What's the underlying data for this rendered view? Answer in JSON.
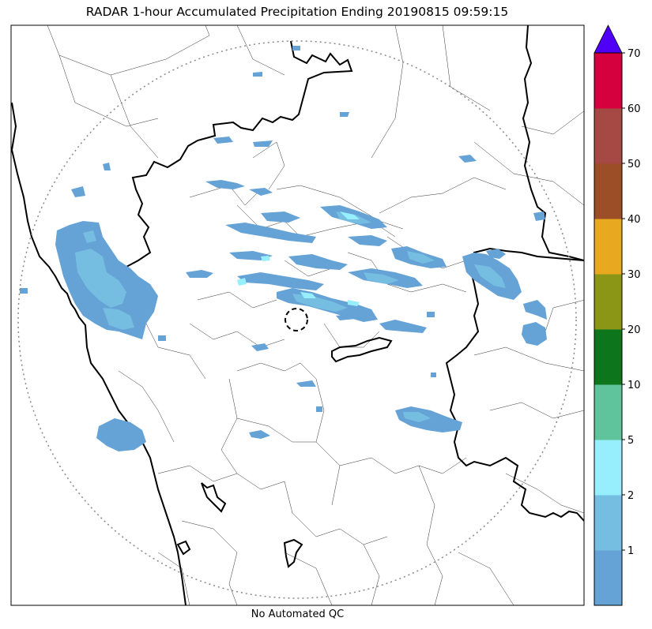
{
  "title": "RADAR 1-hour Accumulated Precipitation Ending 20190815 09:59:15",
  "footer": "No Automated QC",
  "colorbar": {
    "colors": [
      "#65a2d6",
      "#76bde2",
      "#97eefd",
      "#5fc49b",
      "#0d761d",
      "#8b9617",
      "#e8a920",
      "#9c4e27",
      "#a64844",
      "#d5003e"
    ],
    "extend_color": "#5000f6",
    "tick_labels": [
      "1",
      "2",
      "5",
      "10",
      "20",
      "30",
      "40",
      "50",
      "60",
      "70"
    ]
  },
  "map": {
    "land_color": "#ffffff",
    "ocean_color": "#ffffff",
    "precip_color_light": "#65a2d6",
    "precip_color_mid": "#76bde2",
    "precip_color_high": "#97eefd",
    "range_ring_color": "#888888",
    "border_color": "#000000"
  }
}
